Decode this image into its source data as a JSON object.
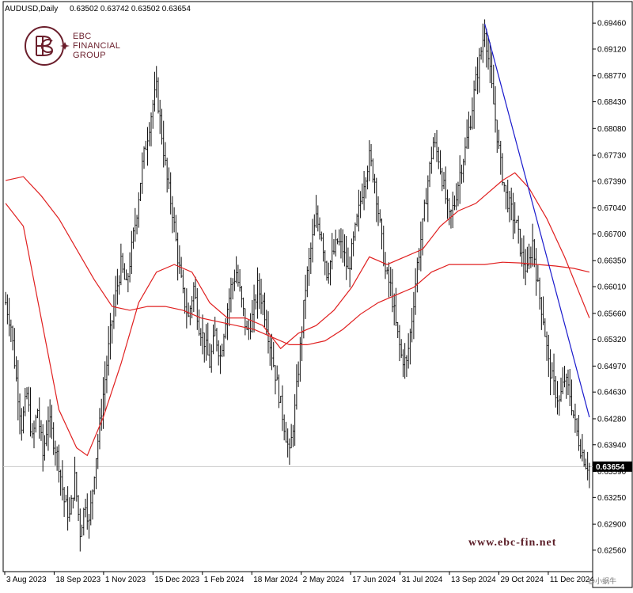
{
  "header": {
    "symbol": "AUDUSD,Daily",
    "ohlc": "0.63502 0.63742 0.63502 0.63654"
  },
  "logo": {
    "line1": "EBC",
    "line2": "FINANCIAL",
    "line3": "GROUP"
  },
  "watermark": "www.ebc-fin.net",
  "credit": "@小蜗牛",
  "colors": {
    "candles": "#000000",
    "ma_fast": "#e02020",
    "ma_slow": "#e02020",
    "trendline": "#1a1acc",
    "brand": "#6b1f2c"
  },
  "chart_data": {
    "type": "bar",
    "symbol": "AUDUSD",
    "timeframe": "Daily",
    "current_price": 0.63654,
    "current_price_label": "0.63654",
    "y_range": [
      0.623,
      0.697
    ],
    "y_ticks": [
      "0.69460",
      "0.69120",
      "0.68770",
      "0.68430",
      "0.68080",
      "0.67730",
      "0.67390",
      "0.67040",
      "0.66700",
      "0.66350",
      "0.66010",
      "0.65660",
      "0.65320",
      "0.64970",
      "0.64630",
      "0.64280",
      "0.63940",
      "0.63590",
      "0.63250",
      "0.62900",
      "0.62560"
    ],
    "x_ticks": [
      "3 Aug 2023",
      "18 Sep 2023",
      "1 Nov 2023",
      "15 Dec 2023",
      "1 Feb 2024",
      "18 Mar 2024",
      "2 May 2024",
      "17 Jun 2024",
      "31 Jul 2024",
      "13 Sep 2024",
      "29 Oct 2024",
      "11 Dec 2024"
    ],
    "grid": false,
    "price_path": [
      [
        0,
        0.658
      ],
      [
        3,
        0.655
      ],
      [
        6,
        0.648
      ],
      [
        9,
        0.642
      ],
      [
        12,
        0.646
      ],
      [
        15,
        0.64
      ],
      [
        18,
        0.644
      ],
      [
        21,
        0.638
      ],
      [
        24,
        0.643
      ],
      [
        27,
        0.64
      ],
      [
        30,
        0.637
      ],
      [
        33,
        0.632
      ],
      [
        36,
        0.63
      ],
      [
        39,
        0.635
      ],
      [
        42,
        0.628
      ],
      [
        45,
        0.632
      ],
      [
        47,
        0.629
      ],
      [
        50,
        0.636
      ],
      [
        53,
        0.642
      ],
      [
        56,
        0.648
      ],
      [
        59,
        0.654
      ],
      [
        62,
        0.659
      ],
      [
        65,
        0.663
      ],
      [
        68,
        0.66
      ],
      [
        71,
        0.665
      ],
      [
        74,
        0.67
      ],
      [
        77,
        0.676
      ],
      [
        80,
        0.68
      ],
      [
        83,
        0.684
      ],
      [
        85,
        0.686
      ],
      [
        88,
        0.68
      ],
      [
        91,
        0.674
      ],
      [
        94,
        0.67
      ],
      [
        97,
        0.664
      ],
      [
        100,
        0.659
      ],
      [
        103,
        0.656
      ],
      [
        106,
        0.66
      ],
      [
        109,
        0.655
      ],
      [
        112,
        0.653
      ],
      [
        115,
        0.65
      ],
      [
        118,
        0.654
      ],
      [
        121,
        0.651
      ],
      [
        124,
        0.656
      ],
      [
        127,
        0.66
      ],
      [
        130,
        0.662
      ],
      [
        133,
        0.658
      ],
      [
        136,
        0.654
      ],
      [
        139,
        0.656
      ],
      [
        142,
        0.66
      ],
      [
        145,
        0.658
      ],
      [
        148,
        0.654
      ],
      [
        151,
        0.65
      ],
      [
        154,
        0.646
      ],
      [
        157,
        0.642
      ],
      [
        160,
        0.638
      ],
      [
        163,
        0.644
      ],
      [
        166,
        0.652
      ],
      [
        169,
        0.66
      ],
      [
        172,
        0.665
      ],
      [
        175,
        0.669
      ],
      [
        178,
        0.667
      ],
      [
        181,
        0.662
      ],
      [
        184,
        0.664
      ],
      [
        187,
        0.666
      ],
      [
        190,
        0.665
      ],
      [
        193,
        0.662
      ],
      [
        196,
        0.666
      ],
      [
        199,
        0.67
      ],
      [
        202,
        0.674
      ],
      [
        205,
        0.677
      ],
      [
        208,
        0.674
      ],
      [
        211,
        0.668
      ],
      [
        214,
        0.662
      ],
      [
        217,
        0.66
      ],
      [
        220,
        0.655
      ],
      [
        223,
        0.651
      ],
      [
        226,
        0.65
      ],
      [
        229,
        0.656
      ],
      [
        232,
        0.663
      ],
      [
        235,
        0.668
      ],
      [
        238,
        0.674
      ],
      [
        241,
        0.679
      ],
      [
        244,
        0.677
      ],
      [
        247,
        0.673
      ],
      [
        250,
        0.669
      ],
      [
        253,
        0.671
      ],
      [
        256,
        0.675
      ],
      [
        259,
        0.678
      ],
      [
        262,
        0.682
      ],
      [
        265,
        0.687
      ],
      [
        268,
        0.691
      ],
      [
        270,
        0.694
      ],
      [
        273,
        0.688
      ],
      [
        276,
        0.682
      ],
      [
        279,
        0.676
      ],
      [
        282,
        0.672
      ],
      [
        285,
        0.67
      ],
      [
        288,
        0.668
      ],
      [
        291,
        0.664
      ],
      [
        294,
        0.662
      ],
      [
        297,
        0.666
      ],
      [
        300,
        0.66
      ],
      [
        303,
        0.656
      ],
      [
        306,
        0.65
      ],
      [
        309,
        0.647
      ],
      [
        312,
        0.645
      ],
      [
        315,
        0.648
      ],
      [
        318,
        0.646
      ],
      [
        321,
        0.642
      ],
      [
        324,
        0.639
      ],
      [
        327,
        0.637
      ],
      [
        329,
        0.6365
      ]
    ],
    "bar_count": 330,
    "series": [
      {
        "name": "",
        "color": "#e02020",
        "kind": "moving-average",
        "points": [
          [
            0,
            0.671
          ],
          [
            10,
            0.668
          ],
          [
            20,
            0.656
          ],
          [
            30,
            0.644
          ],
          [
            40,
            0.639
          ],
          [
            46,
            0.638
          ],
          [
            55,
            0.643
          ],
          [
            65,
            0.65
          ],
          [
            75,
            0.658
          ],
          [
            85,
            0.662
          ],
          [
            95,
            0.663
          ],
          [
            105,
            0.662
          ],
          [
            115,
            0.658
          ],
          [
            125,
            0.656
          ],
          [
            135,
            0.656
          ],
          [
            145,
            0.655
          ],
          [
            155,
            0.652
          ],
          [
            165,
            0.654
          ],
          [
            175,
            0.655
          ],
          [
            185,
            0.657
          ],
          [
            195,
            0.66
          ],
          [
            205,
            0.664
          ],
          [
            215,
            0.663
          ],
          [
            225,
            0.664
          ],
          [
            235,
            0.665
          ],
          [
            245,
            0.668
          ],
          [
            255,
            0.67
          ],
          [
            265,
            0.671
          ],
          [
            270,
            0.672
          ],
          [
            280,
            0.674
          ],
          [
            287,
            0.675
          ],
          [
            295,
            0.673
          ],
          [
            305,
            0.669
          ],
          [
            315,
            0.664
          ],
          [
            329,
            0.656
          ]
        ]
      },
      {
        "name": "",
        "color": "#e02020",
        "kind": "moving-average",
        "points": [
          [
            0,
            0.674
          ],
          [
            10,
            0.6745
          ],
          [
            20,
            0.672
          ],
          [
            30,
            0.669
          ],
          [
            40,
            0.665
          ],
          [
            50,
            0.661
          ],
          [
            60,
            0.6575
          ],
          [
            70,
            0.657
          ],
          [
            80,
            0.6575
          ],
          [
            90,
            0.6575
          ],
          [
            100,
            0.657
          ],
          [
            110,
            0.656
          ],
          [
            120,
            0.6555
          ],
          [
            130,
            0.655
          ],
          [
            140,
            0.6545
          ],
          [
            150,
            0.6535
          ],
          [
            160,
            0.6525
          ],
          [
            170,
            0.6525
          ],
          [
            180,
            0.653
          ],
          [
            190,
            0.6545
          ],
          [
            200,
            0.6565
          ],
          [
            210,
            0.658
          ],
          [
            220,
            0.659
          ],
          [
            230,
            0.66
          ],
          [
            240,
            0.662
          ],
          [
            250,
            0.663
          ],
          [
            260,
            0.663
          ],
          [
            270,
            0.663
          ],
          [
            280,
            0.6633
          ],
          [
            290,
            0.6632
          ],
          [
            300,
            0.663
          ],
          [
            310,
            0.6628
          ],
          [
            320,
            0.6625
          ],
          [
            329,
            0.662
          ]
        ]
      },
      {
        "name": "",
        "color": "#1a1acc",
        "kind": "trendline",
        "points": [
          [
            270,
            0.6945
          ],
          [
            329,
            0.643
          ]
        ]
      }
    ]
  }
}
